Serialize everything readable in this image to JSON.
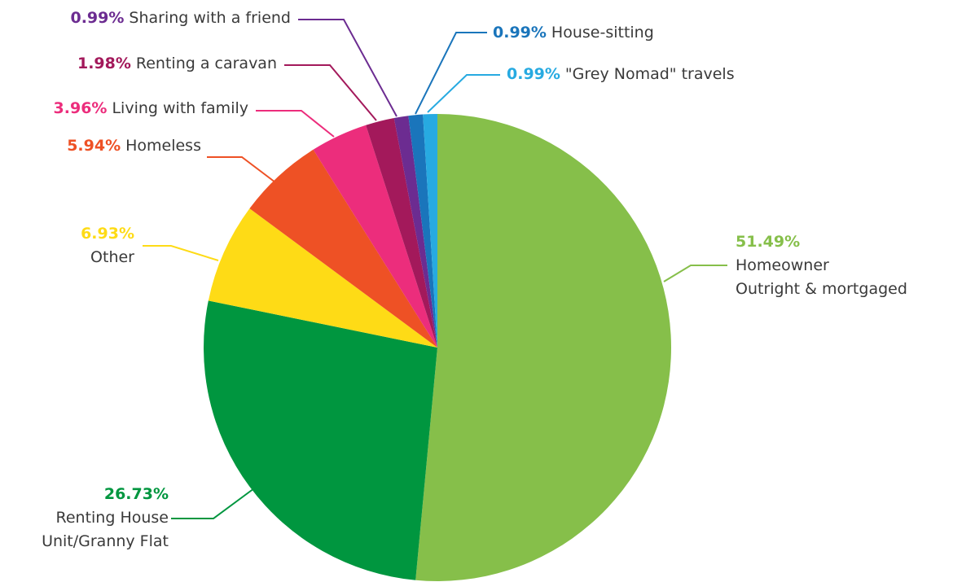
{
  "chart_data": {
    "type": "pie",
    "categories": [
      "Homeowner\nOutright & mortgaged",
      "Renting House\nUnit/Granny Flat",
      "Other",
      "Homeless",
      "Living with family",
      "Renting a caravan",
      "Sharing with a friend",
      "House-sitting",
      "\"Grey Nomad\" travels"
    ],
    "values": [
      51.49,
      26.73,
      6.93,
      5.94,
      3.96,
      1.98,
      0.99,
      0.99,
      0.99
    ],
    "value_labels": [
      "51.49%",
      "26.73%",
      "6.93%",
      "5.94%",
      "3.96%",
      "1.98%",
      "0.99%",
      "0.99%",
      "0.99%"
    ],
    "colors": [
      "#86bf4a",
      "#00963f",
      "#fedb16",
      "#ee5125",
      "#ec2d7c",
      "#a3195b",
      "#6c2c91",
      "#1a75bb",
      "#27aae1"
    ]
  }
}
